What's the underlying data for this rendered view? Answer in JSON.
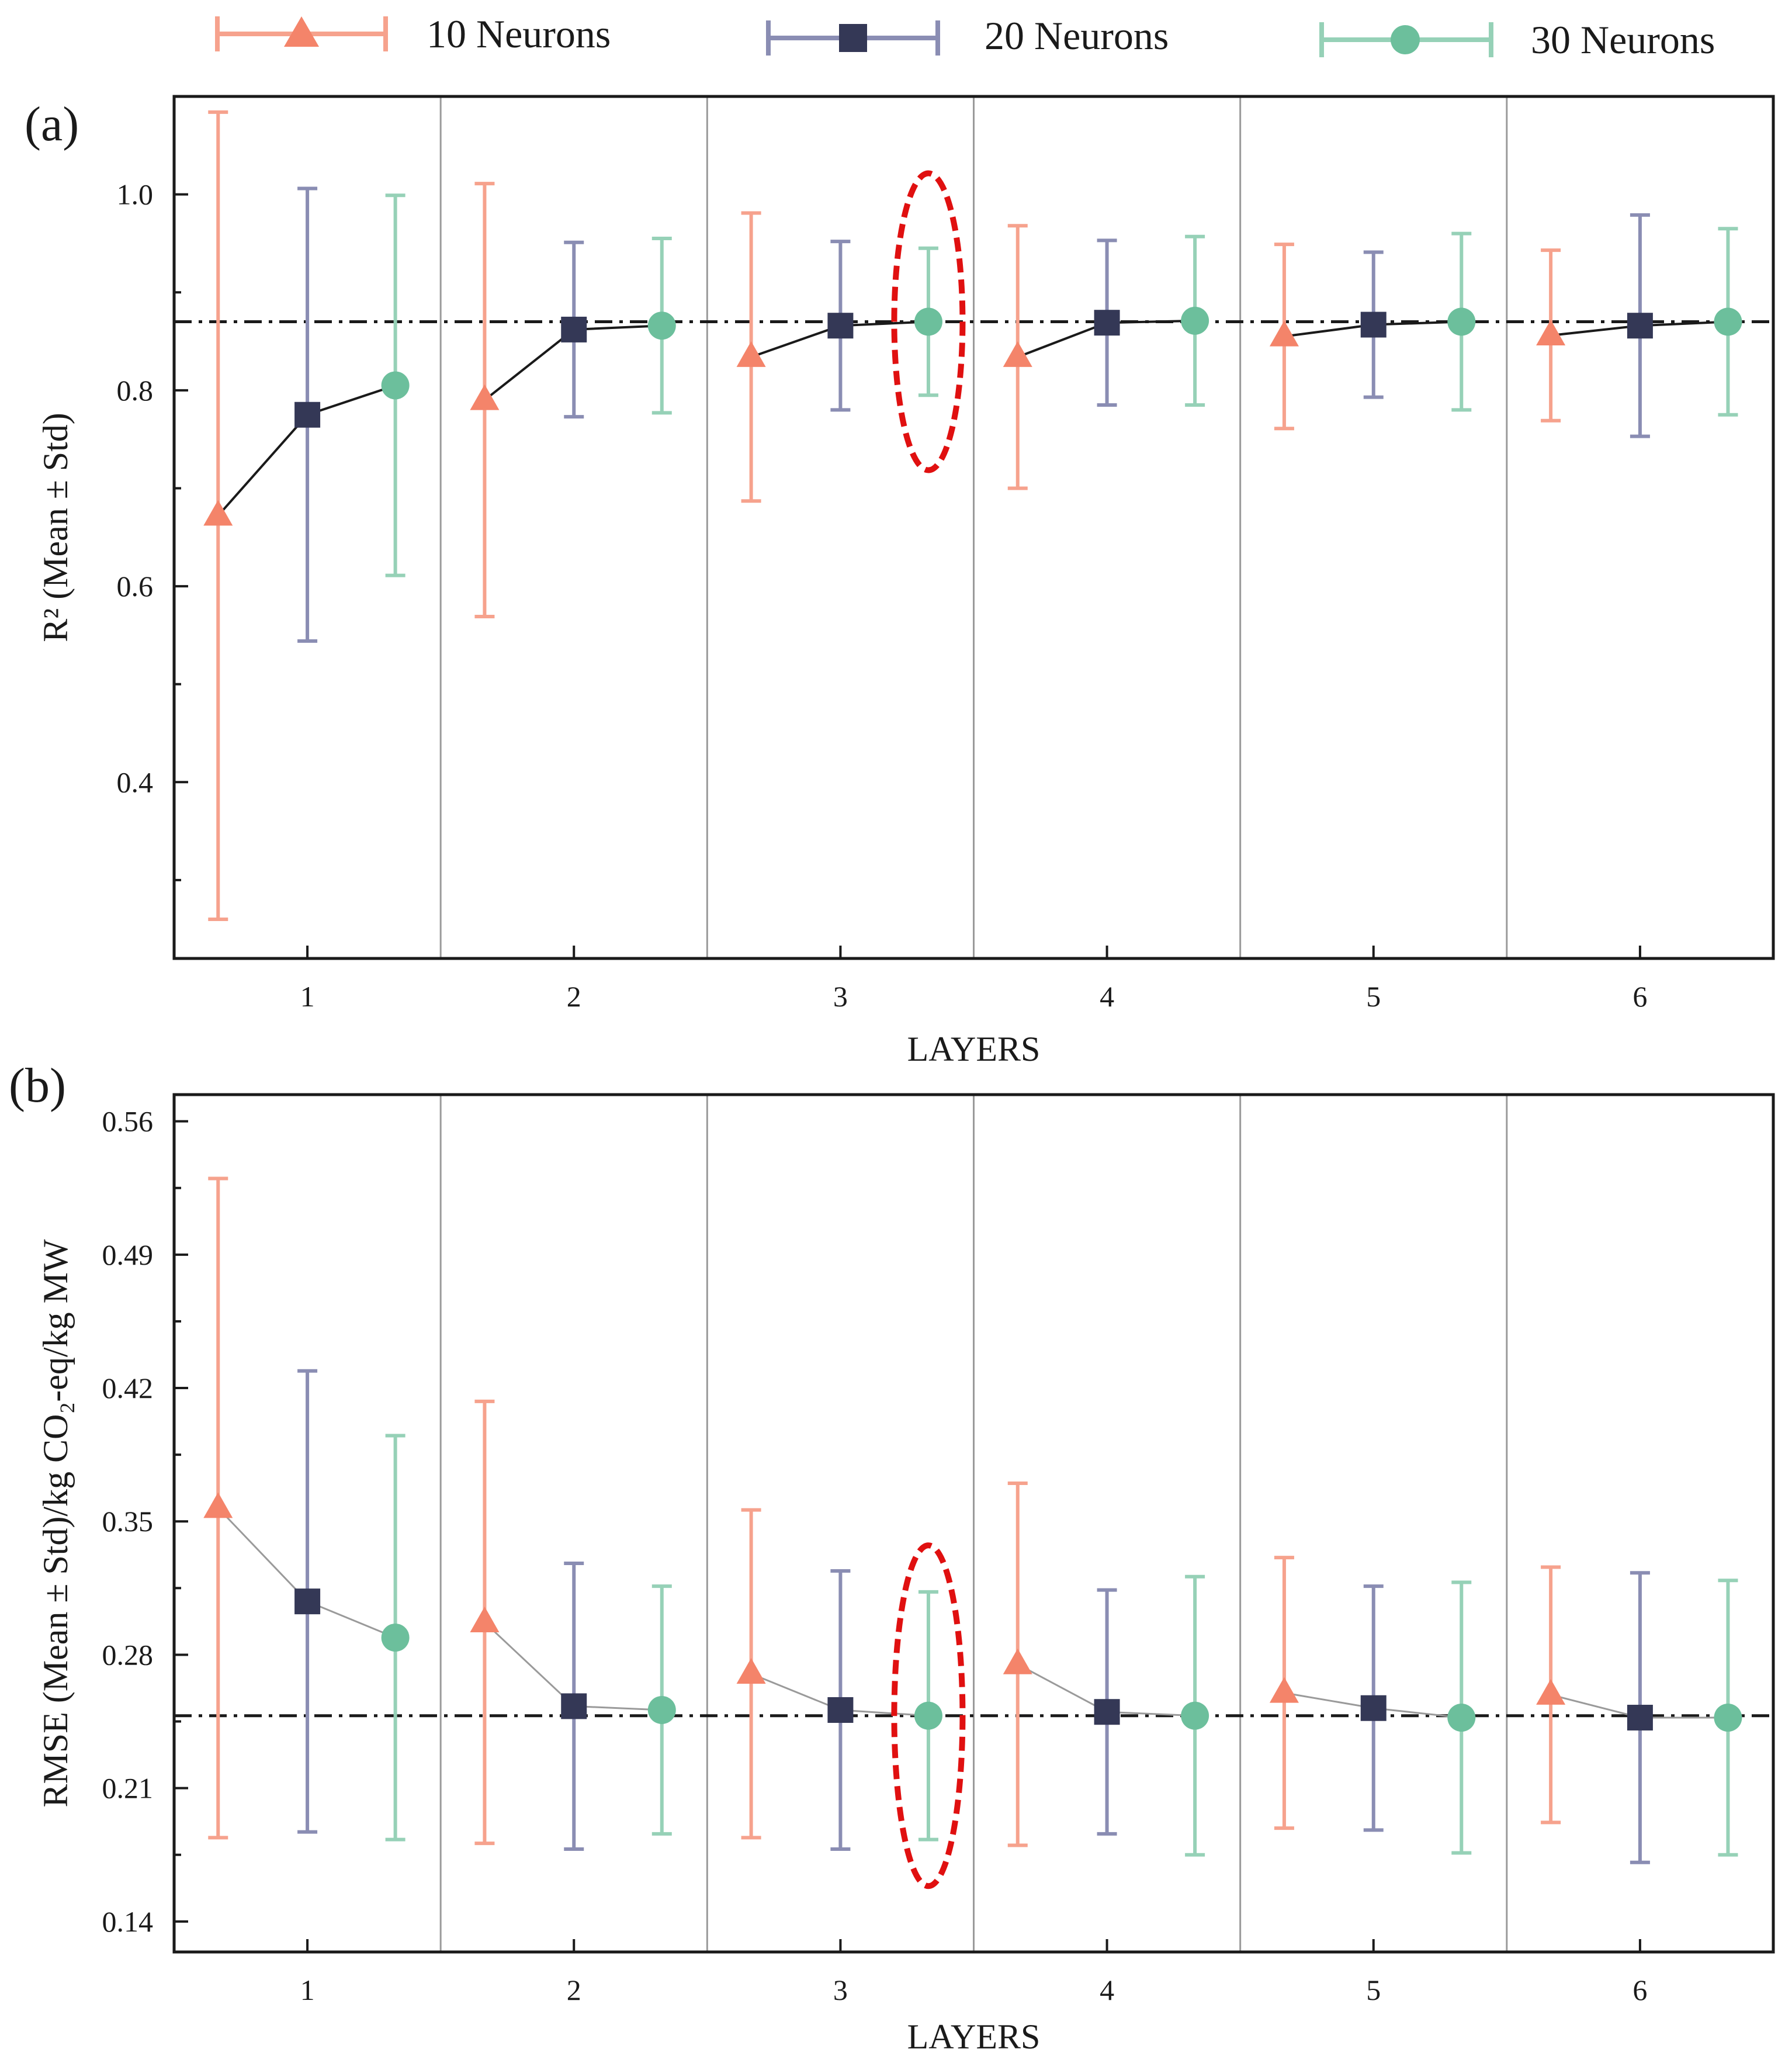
{
  "legend": [
    {
      "label": "10 Neurons",
      "marker": "triangle",
      "color": "#f4846a",
      "bar_color": "#f6a28d"
    },
    {
      "label": "20 Neurons",
      "marker": "square",
      "color": "#343856",
      "bar_color": "#8a8db3"
    },
    {
      "label": "30 Neurons",
      "marker": "circle",
      "color": "#6cbf9c",
      "bar_color": "#96d1b7"
    }
  ],
  "colors": {
    "connector_a": "#1a1a1a",
    "connector_b": "#9a9a9a",
    "highlight": "#e01010",
    "separator": "#9a9a9a",
    "axis": "#1a1a1a"
  },
  "chart_data": [
    {
      "type": "scatter",
      "panel": "(a)",
      "xlabel": "LAYERS",
      "ylabel": "R² (Mean ± Std)",
      "categories": [
        "1",
        "2",
        "3",
        "4",
        "5",
        "6"
      ],
      "ylim": [
        0.22,
        1.1
      ],
      "yticks": [
        "0.4",
        "0.6",
        "0.8",
        "1.0"
      ],
      "reference_line": 0.87,
      "highlight": {
        "layer": 3,
        "series": "30 Neurons"
      },
      "series": [
        {
          "name": "10 Neurons",
          "mean": [
            0.672,
            0.79,
            0.834,
            0.834,
            0.855,
            0.856
          ],
          "std": [
            0.412,
            0.221,
            0.147,
            0.134,
            0.094,
            0.087
          ]
        },
        {
          "name": "20 Neurons",
          "mean": [
            0.775,
            0.862,
            0.866,
            0.869,
            0.867,
            0.866
          ],
          "std": [
            0.231,
            0.089,
            0.086,
            0.084,
            0.074,
            0.113
          ]
        },
        {
          "name": "30 Neurons",
          "mean": [
            0.805,
            0.866,
            0.87,
            0.871,
            0.87,
            0.87
          ],
          "std": [
            0.194,
            0.089,
            0.075,
            0.086,
            0.09,
            0.095
          ]
        }
      ]
    },
    {
      "type": "scatter",
      "panel": "(b)",
      "xlabel": "LAYERS",
      "ylabel": "RMSE (Mean ± Std)/kg CO₂-eq/kg MW",
      "categories": [
        "1",
        "2",
        "3",
        "4",
        "5",
        "6"
      ],
      "ylim": [
        0.124,
        0.574
      ],
      "yticks": [
        "0.14",
        "0.21",
        "0.28",
        "0.35",
        "0.42",
        "0.49",
        "0.56"
      ],
      "reference_line": 0.248,
      "highlight": {
        "layer": 3,
        "series": "30 Neurons"
      },
      "series": [
        {
          "name": "10 Neurons",
          "mean": [
            0.357,
            0.297,
            0.27,
            0.275,
            0.26,
            0.259
          ],
          "std": [
            0.173,
            0.116,
            0.086,
            0.095,
            0.071,
            0.067
          ]
        },
        {
          "name": "20 Neurons",
          "mean": [
            0.308,
            0.253,
            0.251,
            0.25,
            0.252,
            0.247
          ],
          "std": [
            0.121,
            0.075,
            0.073,
            0.064,
            0.064,
            0.076
          ]
        },
        {
          "name": "30 Neurons",
          "mean": [
            0.289,
            0.251,
            0.248,
            0.248,
            0.247,
            0.247
          ],
          "std": [
            0.106,
            0.065,
            0.065,
            0.073,
            0.071,
            0.072
          ]
        }
      ]
    }
  ]
}
